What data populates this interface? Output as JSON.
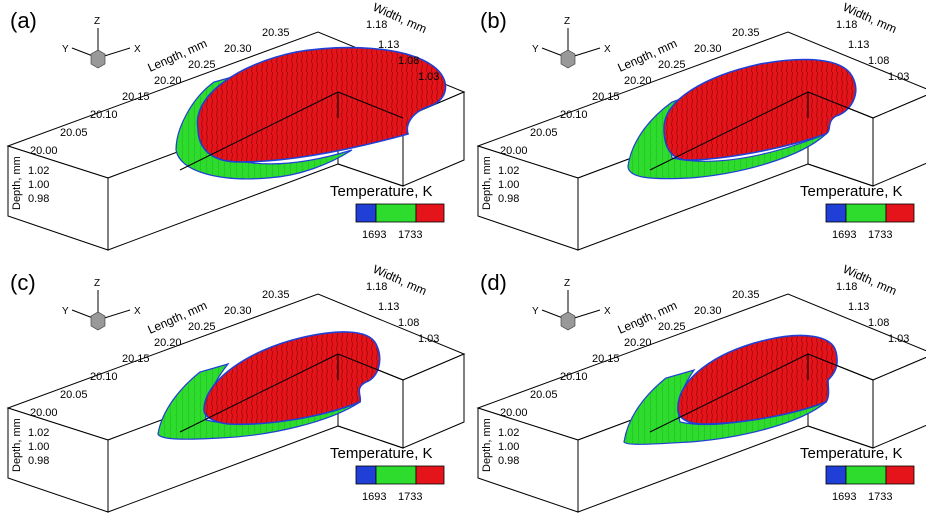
{
  "chart_data": [
    {
      "type": "3d-surface",
      "panel_label": "(a)",
      "xlabel": "Length, mm",
      "ylabel": "Width, mm",
      "zlabel": "Depth, mm",
      "x_ticks": [
        "20.00",
        "20.05",
        "20.10",
        "20.15",
        "20.20",
        "20.25",
        "20.30",
        "20.35"
      ],
      "y_ticks": [
        "1.18",
        "1.13",
        "1.08",
        "1.03"
      ],
      "z_ticks": [
        "1.02",
        "1.00",
        "0.98"
      ],
      "legend_title": "Temperature, K",
      "legend_levels": [
        {
          "label": "1693",
          "color": "#1f3fd6"
        },
        {
          "label": "",
          "color": "#2edc2e"
        },
        {
          "label": "1733",
          "color": "#e4141a"
        }
      ],
      "axis_triad": [
        "Z",
        "Y",
        "X"
      ]
    },
    {
      "type": "3d-surface",
      "panel_label": "(b)",
      "xlabel": "Length, mm",
      "ylabel": "Width, mm",
      "zlabel": "Depth, mm",
      "x_ticks": [
        "20.00",
        "20.05",
        "20.10",
        "20.15",
        "20.20",
        "20.25",
        "20.30",
        "20.35"
      ],
      "y_ticks": [
        "1.18",
        "1.13",
        "1.08",
        "1.03"
      ],
      "z_ticks": [
        "1.02",
        "1.00",
        "0.98"
      ],
      "legend_title": "Temperature, K",
      "legend_levels": [
        {
          "label": "1693",
          "color": "#1f3fd6"
        },
        {
          "label": "",
          "color": "#2edc2e"
        },
        {
          "label": "1733",
          "color": "#e4141a"
        }
      ],
      "axis_triad": [
        "Z",
        "Y",
        "X"
      ]
    },
    {
      "type": "3d-surface",
      "panel_label": "(c)",
      "xlabel": "Length, mm",
      "ylabel": "Width, mm",
      "zlabel": "Depth, mm",
      "x_ticks": [
        "20.00",
        "20.05",
        "20.10",
        "20.15",
        "20.20",
        "20.25",
        "20.30",
        "20.35"
      ],
      "y_ticks": [
        "1.18",
        "1.13",
        "1.08",
        "1.03"
      ],
      "z_ticks": [
        "1.02",
        "1.00",
        "0.98"
      ],
      "legend_title": "Temperature, K",
      "legend_levels": [
        {
          "label": "1693",
          "color": "#1f3fd6"
        },
        {
          "label": "",
          "color": "#2edc2e"
        },
        {
          "label": "1733",
          "color": "#e4141a"
        }
      ],
      "axis_triad": [
        "Z",
        "Y",
        "X"
      ]
    },
    {
      "type": "3d-surface",
      "panel_label": "(d)",
      "xlabel": "Length, mm",
      "ylabel": "Width, mm",
      "zlabel": "Depth, mm",
      "x_ticks": [
        "20.00",
        "20.05",
        "20.10",
        "20.15",
        "20.20",
        "20.25",
        "20.30",
        "20.35"
      ],
      "y_ticks": [
        "1.18",
        "1.13",
        "1.08",
        "1.03"
      ],
      "z_ticks": [
        "1.02",
        "1.00",
        "0.98"
      ],
      "legend_title": "Temperature, K",
      "legend_levels": [
        {
          "label": "1693",
          "color": "#1f3fd6"
        },
        {
          "label": "",
          "color": "#2edc2e"
        },
        {
          "label": "1733",
          "color": "#e4141a"
        }
      ],
      "axis_triad": [
        "Z",
        "Y",
        "X"
      ]
    }
  ]
}
